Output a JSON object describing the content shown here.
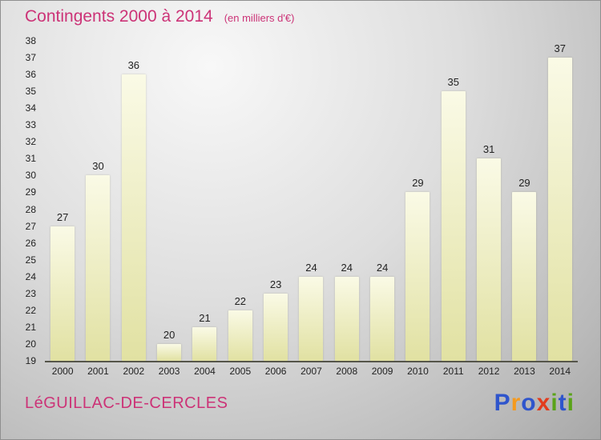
{
  "title": {
    "text": "Contingents 2000 à 2014",
    "subtitle": "(en milliers d'€)"
  },
  "footer": {
    "place": "LéGUILLAC-DE-CERCLES",
    "logo": {
      "name": "Proxiti",
      "letters": [
        {
          "ch": "P",
          "color": "#2f55cc"
        },
        {
          "ch": "r",
          "color": "#f59a1e"
        },
        {
          "ch": "o",
          "color": "#2f55cc"
        },
        {
          "ch": "x",
          "color": "#e23c1e"
        },
        {
          "ch": "i",
          "color": "#5aa318"
        },
        {
          "ch": "t",
          "color": "#2f55cc"
        },
        {
          "ch": "i",
          "color": "#5aa318"
        }
      ]
    }
  },
  "chart_data": {
    "type": "bar",
    "title": "Contingents 2000 à 2014",
    "subtitle": "(en milliers d'€)",
    "categories": [
      "2000",
      "2001",
      "2002",
      "2003",
      "2004",
      "2005",
      "2006",
      "2007",
      "2008",
      "2009",
      "2010",
      "2011",
      "2012",
      "2013",
      "2014"
    ],
    "values": [
      27,
      30,
      36,
      20,
      21,
      22,
      23,
      24,
      24,
      24,
      29,
      35,
      31,
      29,
      37
    ],
    "xlabel": "",
    "ylabel": "",
    "ylim": [
      19,
      38
    ],
    "ytick_step": 1,
    "grid": false,
    "legend": "none",
    "bar_color_top": "#fafae6",
    "bar_color_bottom": "#e1e1a2",
    "axis_color": "#55554a",
    "label_color": "#222222",
    "title_color": "#cc3377"
  }
}
